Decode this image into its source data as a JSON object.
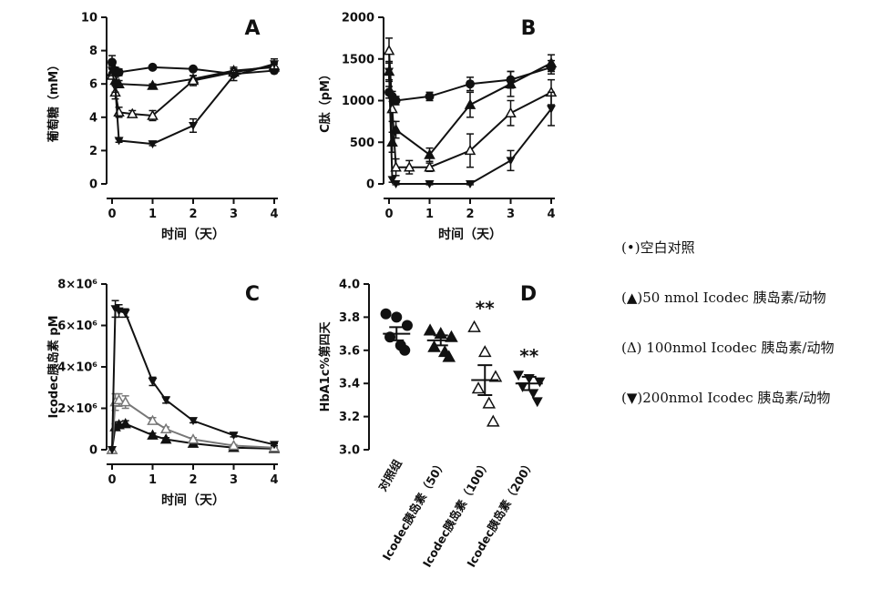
{
  "chart_data": [
    {
      "type": "line",
      "panel_letter": "A",
      "xlabel": "时间（天）",
      "ylabel": "葡萄糖（mM）",
      "xlim": [
        0,
        4
      ],
      "ylim": [
        0,
        10
      ],
      "xticks": [
        "0",
        "1",
        "2",
        "3",
        "4"
      ],
      "yticks": [
        "0",
        "2",
        "4",
        "6",
        "8",
        "10"
      ],
      "series": [
        {
          "marker": "circle",
          "x": [
            0,
            0.08,
            0.17,
            1,
            2,
            3,
            4
          ],
          "y": [
            7.3,
            6.8,
            6.7,
            7.0,
            6.9,
            6.6,
            6.8
          ],
          "err": [
            0.4,
            0.2,
            0.2,
            0.1,
            0.1,
            0.1,
            0.1
          ]
        },
        {
          "marker": "triangle-up",
          "x": [
            0,
            0.08,
            0.17,
            1,
            2,
            3,
            4
          ],
          "y": [
            6.7,
            6.2,
            6.0,
            5.9,
            6.3,
            6.8,
            7.0
          ],
          "err": [
            0.3,
            0.2,
            0.2,
            0.1,
            0.2,
            0.2,
            0.2
          ]
        },
        {
          "marker": "triangle-open",
          "x": [
            0,
            0.08,
            0.17,
            0.5,
            1,
            2,
            3,
            4
          ],
          "y": [
            6.5,
            5.5,
            4.3,
            4.2,
            4.1,
            6.2,
            6.7,
            7.1
          ],
          "err": [
            0.2,
            0.4,
            0.3,
            0.2,
            0.3,
            0.3,
            0.2,
            0.2
          ]
        },
        {
          "marker": "triangle-down",
          "x": [
            0,
            0.08,
            0.17,
            1,
            2,
            3,
            4
          ],
          "y": [
            6.8,
            5.8,
            2.6,
            2.4,
            3.5,
            6.5,
            7.2
          ],
          "err": [
            0.3,
            0.3,
            0.1,
            0.1,
            0.4,
            0.3,
            0.3
          ]
        }
      ]
    },
    {
      "type": "line",
      "panel_letter": "B",
      "xlabel": "时间（天）",
      "ylabel": "C肽（pM）",
      "xlim": [
        0,
        4
      ],
      "ylim": [
        0,
        2000
      ],
      "xticks": [
        "0",
        "1",
        "2",
        "3",
        "4"
      ],
      "yticks": [
        "0",
        "500",
        "1000",
        "1500",
        "2000"
      ],
      "series": [
        {
          "marker": "circle",
          "x": [
            0,
            0.08,
            0.17,
            1,
            2,
            3,
            4
          ],
          "y": [
            1100,
            1050,
            1000,
            1050,
            1200,
            1250,
            1400
          ],
          "err": [
            70,
            60,
            50,
            50,
            80,
            100,
            80
          ]
        },
        {
          "marker": "triangle-up",
          "x": [
            0,
            0.08,
            0.17,
            1,
            2,
            3,
            4
          ],
          "y": [
            1350,
            500,
            650,
            350,
            950,
            1200,
            1450
          ],
          "err": [
            120,
            120,
            100,
            80,
            150,
            150,
            100
          ]
        },
        {
          "marker": "triangle-open",
          "x": [
            0,
            0.08,
            0.17,
            0.5,
            1,
            2,
            3,
            4
          ],
          "y": [
            1600,
            900,
            200,
            200,
            200,
            400,
            850,
            1100
          ],
          "err": [
            150,
            150,
            100,
            80,
            50,
            200,
            150,
            150
          ]
        },
        {
          "marker": "triangle-down",
          "x": [
            0,
            0.08,
            0.17,
            1,
            2,
            3,
            4
          ],
          "y": [
            1350,
            50,
            0,
            0,
            0,
            280,
            900
          ],
          "err": [
            100,
            30,
            10,
            10,
            10,
            120,
            200
          ]
        }
      ]
    },
    {
      "type": "line",
      "panel_letter": "C",
      "xlabel": "时间（天）",
      "ylabel": "Icodec胰岛素 pM",
      "xlim": [
        0,
        4
      ],
      "ylim": [
        0,
        8000000
      ],
      "xticks": [
        "0",
        "1",
        "2",
        "3",
        "4"
      ],
      "yticks": [
        "0",
        "2×10⁶",
        "4×10⁶",
        "6×10⁶",
        "8×10⁶"
      ],
      "series": [
        {
          "marker": "triangle-up",
          "x": [
            0,
            0.08,
            0.17,
            0.33,
            1,
            1.33,
            2,
            3,
            4
          ],
          "y": [
            0,
            1100000,
            1200000,
            1250000,
            700000,
            500000,
            300000,
            100000,
            50000
          ],
          "err": [
            0,
            150000,
            150000,
            150000,
            100000,
            80000,
            50000,
            30000,
            20000
          ],
          "color": "#111111"
        },
        {
          "marker": "triangle-open",
          "x": [
            0,
            0.08,
            0.17,
            0.33,
            1,
            1.33,
            2,
            3,
            4
          ],
          "y": [
            0,
            2300000,
            2400000,
            2300000,
            1400000,
            1000000,
            500000,
            200000,
            100000
          ],
          "err": [
            0,
            400000,
            300000,
            300000,
            150000,
            100000,
            80000,
            50000,
            30000
          ],
          "color": "#777777"
        },
        {
          "marker": "triangle-down",
          "x": [
            0,
            0.08,
            0.17,
            0.33,
            1,
            1.33,
            2,
            3,
            4
          ],
          "y": [
            0,
            6800000,
            6700000,
            6600000,
            3300000,
            2400000,
            1400000,
            700000,
            250000
          ],
          "err": [
            0,
            400000,
            300000,
            200000,
            200000,
            150000,
            100000,
            80000,
            50000
          ],
          "color": "#111111"
        }
      ]
    },
    {
      "type": "scatter",
      "panel_letter": "D",
      "ylabel": "HbA1c%第四天",
      "ylim": [
        3.0,
        4.0
      ],
      "yticks": [
        "3.0",
        "3.2",
        "3.4",
        "3.6",
        "3.8",
        "4.0"
      ],
      "categories": [
        "对照组",
        "Icodec胰岛素（50）",
        "Icodec胰岛素（100）",
        "Icodec胰岛素（200）"
      ],
      "markers": [
        "circle",
        "triangle-up",
        "triangle-open",
        "triangle-down"
      ],
      "points": [
        [
          3.82,
          3.8,
          3.75,
          3.68,
          3.63,
          3.6
        ],
        [
          3.72,
          3.7,
          3.68,
          3.62,
          3.59,
          3.56
        ],
        [
          3.74,
          3.59,
          3.44,
          3.37,
          3.28,
          3.17
        ],
        [
          3.45,
          3.43,
          3.41,
          3.38,
          3.34,
          3.29
        ]
      ],
      "mean": [
        3.7,
        3.66,
        3.42,
        3.4
      ],
      "sem": [
        0.04,
        0.03,
        0.09,
        0.04
      ],
      "significance": [
        "",
        "",
        "**",
        "**"
      ]
    }
  ],
  "legend": {
    "items": [
      {
        "symbol": "(•)",
        "text": "空白对照"
      },
      {
        "symbol": "(▲)",
        "text": "50 nmol Icodec 胰岛素/动物"
      },
      {
        "symbol": "(Δ)",
        "text": " 100nmol Icodec 胰岛素/动物"
      },
      {
        "symbol": "(▼)",
        "text": "200nmol Icodec 胰岛素/动物"
      }
    ]
  }
}
